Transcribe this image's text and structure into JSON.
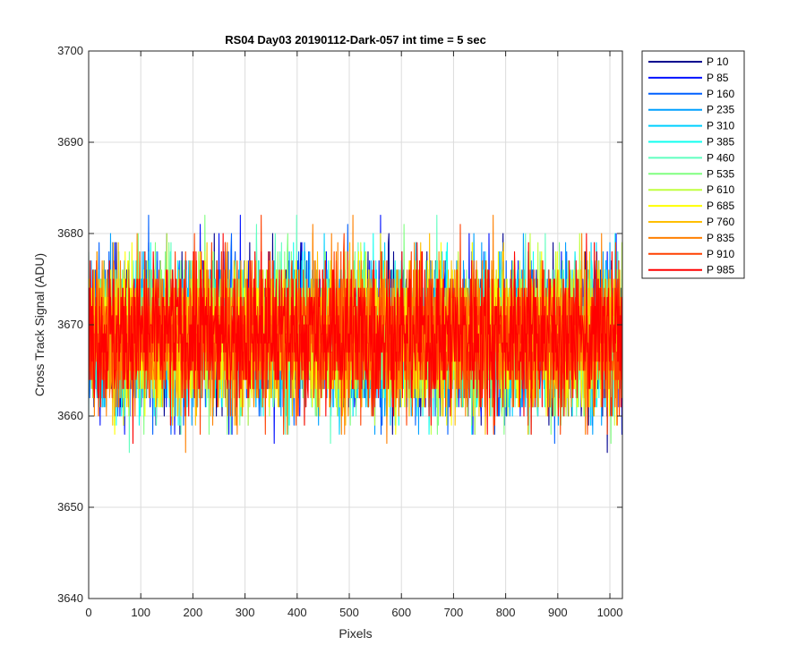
{
  "chart_data": {
    "type": "line",
    "title": "RS04 Day03 20190112-Dark-057 int time = 5 sec",
    "xlabel": "Pixels",
    "ylabel": "Cross Track Signal (ADU)",
    "xlim": [
      0,
      1024
    ],
    "ylim": [
      3640,
      3700
    ],
    "xticks": [
      0,
      100,
      200,
      300,
      400,
      500,
      600,
      700,
      800,
      900,
      1000
    ],
    "yticks": [
      3640,
      3650,
      3660,
      3670,
      3680,
      3690,
      3700
    ],
    "grid": true,
    "legend_position": "outside-top-right",
    "series": [
      {
        "name": "P 10",
        "color": "#00008f",
        "mean": 3669,
        "std": 7.5
      },
      {
        "name": "P 85",
        "color": "#0010ff",
        "mean": 3669,
        "std": 7.5
      },
      {
        "name": "P 160",
        "color": "#0060ff",
        "mean": 3669,
        "std": 7.5
      },
      {
        "name": "P 235",
        "color": "#00a0ff",
        "mean": 3669,
        "std": 7.5
      },
      {
        "name": "P 310",
        "color": "#00d0ff",
        "mean": 3669,
        "std": 7.5
      },
      {
        "name": "P 385",
        "color": "#10ffef",
        "mean": 3669,
        "std": 7.5
      },
      {
        "name": "P 460",
        "color": "#60ffbf",
        "mean": 3669,
        "std": 7.5
      },
      {
        "name": "P 535",
        "color": "#80ff80",
        "mean": 3669,
        "std": 7.5
      },
      {
        "name": "P 610",
        "color": "#c0ff40",
        "mean": 3669,
        "std": 7.5
      },
      {
        "name": "P 685",
        "color": "#ffff00",
        "mean": 3669,
        "std": 7.5
      },
      {
        "name": "P 760",
        "color": "#ffbf00",
        "mean": 3669,
        "std": 7.5
      },
      {
        "name": "P 835",
        "color": "#ff8000",
        "mean": 3669,
        "std": 7.5
      },
      {
        "name": "P 910",
        "color": "#ff4000",
        "mean": 3669,
        "std": 7.5
      },
      {
        "name": "P 985",
        "color": "#ff0000",
        "mean": 3669,
        "std": 7.5
      }
    ]
  }
}
